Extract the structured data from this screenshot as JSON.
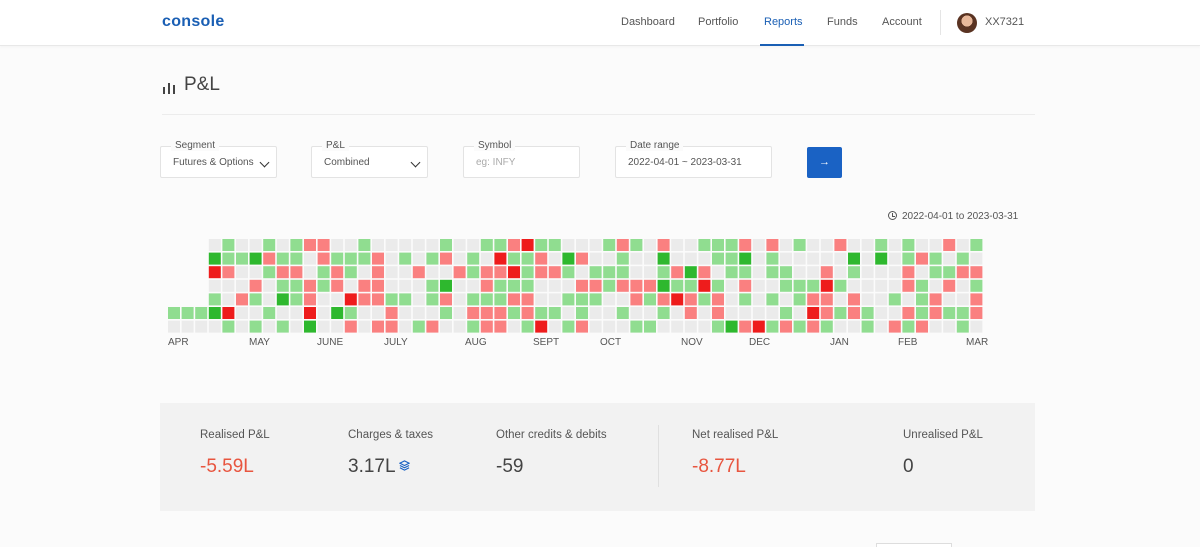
{
  "app": {
    "logo": "console",
    "user_id": "XX7321"
  },
  "nav": {
    "items": [
      {
        "label": "Dashboard"
      },
      {
        "label": "Portfolio"
      },
      {
        "label": "Reports",
        "active": true
      },
      {
        "label": "Funds"
      },
      {
        "label": "Account"
      }
    ]
  },
  "page": {
    "title": "P&L",
    "title_icon": "bar-chart-icon"
  },
  "filters": {
    "segment": {
      "label": "Segment",
      "value": "Futures & Options"
    },
    "pnl": {
      "label": "P&L",
      "value": "Combined"
    },
    "symbol": {
      "label": "Symbol",
      "placeholder": "eg: INFY"
    },
    "date_range": {
      "label": "Date range",
      "value": "2022-04-01 ~ 2023-03-31"
    },
    "submit_icon": "arrow-right-icon",
    "submit_label": "→"
  },
  "heatmap": {
    "range_caption": "2022-04-01 to 2023-03-31",
    "months": [
      "APR",
      "MAY",
      "JUNE",
      "JULY",
      "AUG",
      "SEPT",
      "OCT",
      "NOV",
      "DEC",
      "JAN",
      "FEB",
      "MAR"
    ],
    "colors": {
      "empty": "#ebebeb",
      "profit": "#90dd90",
      "profit_strong": "#2eb82e",
      "loss": "#fa8080",
      "loss_strong": "#ee1c1c"
    }
  },
  "summary": {
    "realised": {
      "label": "Realised P&L",
      "value": "-5.59L"
    },
    "charges": {
      "label": "Charges & taxes",
      "value": "3.17L",
      "icon": "layers-icon"
    },
    "other": {
      "label": "Other credits & debits",
      "value": "-59"
    },
    "net": {
      "label": "Net realised P&L",
      "value": "-8.77L"
    },
    "unrealised": {
      "label": "Unrealised P&L",
      "value": "0"
    }
  }
}
